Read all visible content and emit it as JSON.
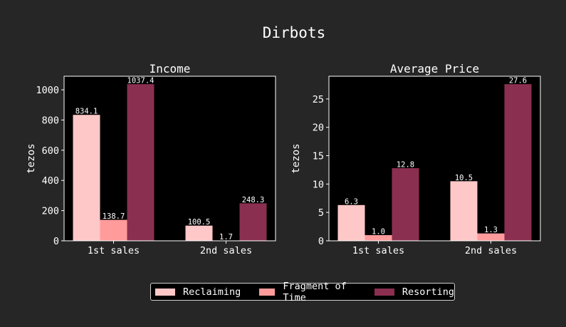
{
  "figure": {
    "title": "Dirbots",
    "background": "#262626",
    "plot_background": "#000000",
    "text_color": "#ffffff"
  },
  "legend": {
    "placement": "bottom-center",
    "items": [
      {
        "label": "Reclaiming",
        "color": "#ffc8c8"
      },
      {
        "label": "Fragment of Time",
        "color": "#ff9b9b"
      },
      {
        "label": "Resorting",
        "color": "#8b2f50"
      }
    ]
  },
  "chart_data": [
    {
      "type": "bar",
      "title": "Income",
      "xlabel": "",
      "ylabel": "tezos",
      "categories": [
        "1st sales",
        "2nd sales"
      ],
      "ylim": [
        0,
        1090
      ],
      "yticks": [
        0,
        200,
        400,
        600,
        800,
        1000
      ],
      "grid": false,
      "series": [
        {
          "name": "Reclaiming",
          "color": "#ffc8c8",
          "values": [
            834.1,
            100.5
          ],
          "labels": [
            "834.1",
            "100.5"
          ]
        },
        {
          "name": "Fragment of Time",
          "color": "#ff9b9b",
          "values": [
            138.7,
            1.7
          ],
          "labels": [
            "138.7",
            "1.7"
          ]
        },
        {
          "name": "Resorting",
          "color": "#8b2f50",
          "values": [
            1037.4,
            248.3
          ],
          "labels": [
            "1037.4",
            "248.3"
          ]
        }
      ]
    },
    {
      "type": "bar",
      "title": "Average Price",
      "xlabel": "",
      "ylabel": "tezos",
      "categories": [
        "1st sales",
        "2nd sales"
      ],
      "ylim": [
        0,
        29
      ],
      "yticks": [
        0,
        5,
        10,
        15,
        20,
        25
      ],
      "grid": false,
      "series": [
        {
          "name": "Reclaiming",
          "color": "#ffc8c8",
          "values": [
            6.3,
            10.5
          ],
          "labels": [
            "6.3",
            "10.5"
          ]
        },
        {
          "name": "Fragment of Time",
          "color": "#ff9b9b",
          "values": [
            1.0,
            1.3
          ],
          "labels": [
            "1.0",
            "1.3"
          ]
        },
        {
          "name": "Resorting",
          "color": "#8b2f50",
          "values": [
            12.8,
            27.6
          ],
          "labels": [
            "12.8",
            "27.6"
          ]
        }
      ]
    }
  ]
}
